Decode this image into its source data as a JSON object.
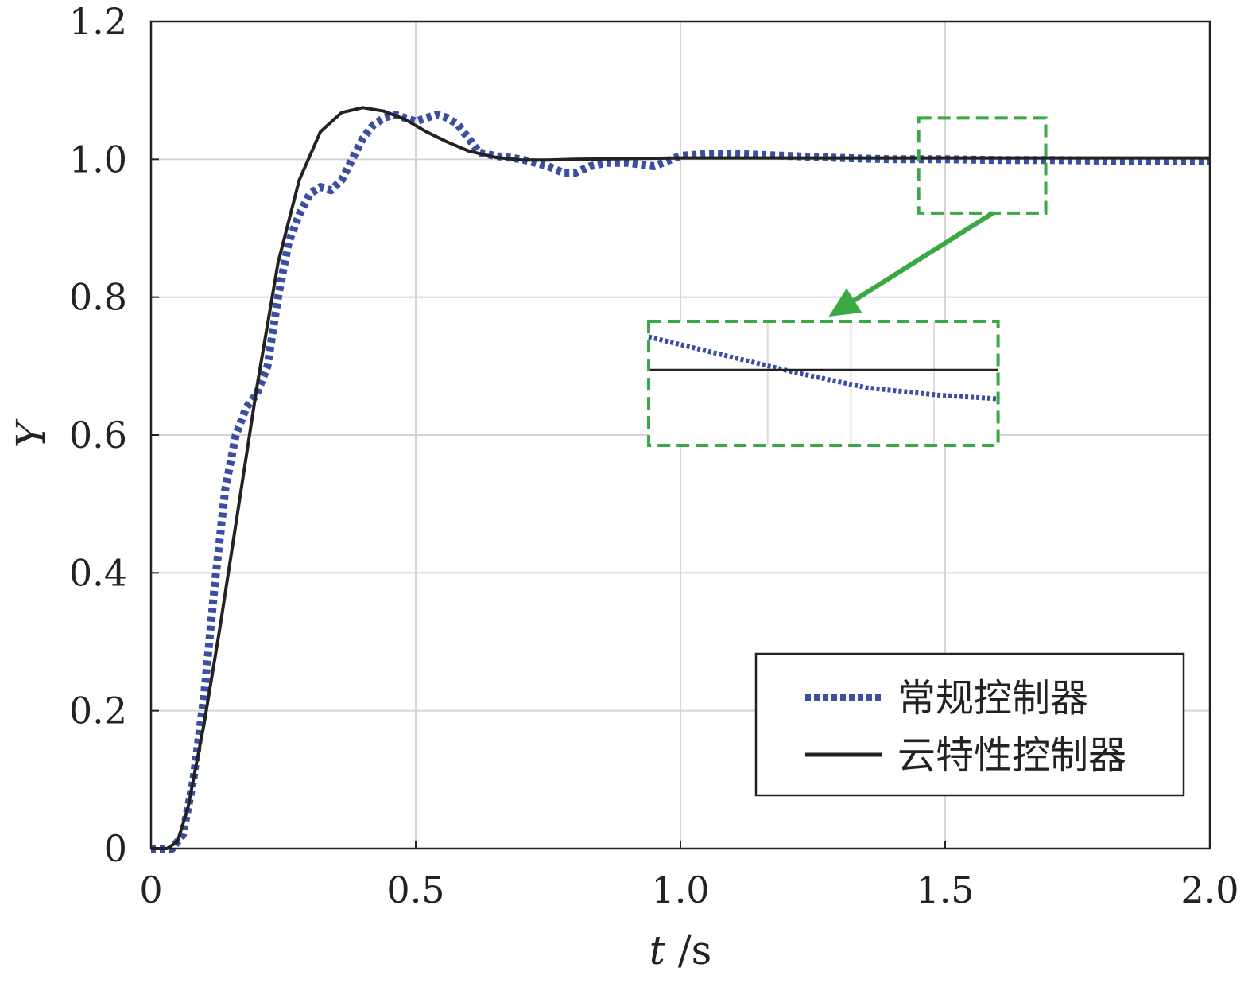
{
  "chart_data": {
    "type": "line",
    "xlabel_var": "t",
    "xlabel_unit": " /s",
    "ylabel": "Y",
    "xlim": [
      0,
      2.0
    ],
    "ylim": [
      0,
      1.2
    ],
    "grid": true,
    "legend_position": "bottom-right",
    "x_ticks": [
      {
        "value": 0,
        "label": "0"
      },
      {
        "value": 0.5,
        "label": "0.5"
      },
      {
        "value": 1.0,
        "label": "1.0"
      },
      {
        "value": 1.5,
        "label": "1.5"
      },
      {
        "value": 2.0,
        "label": "2.0"
      }
    ],
    "y_ticks": [
      {
        "value": 0,
        "label": "0"
      },
      {
        "value": 0.2,
        "label": "0.2"
      },
      {
        "value": 0.4,
        "label": "0.4"
      },
      {
        "value": 0.6,
        "label": "0.6"
      },
      {
        "value": 0.8,
        "label": "0.8"
      },
      {
        "value": 1.0,
        "label": "1.0"
      },
      {
        "value": 1.2,
        "label": "1.2"
      }
    ],
    "series": [
      {
        "name": "常规控制器",
        "color": "#3a4ea3",
        "style": "dotted",
        "x": [
          0,
          0.04,
          0.06,
          0.08,
          0.1,
          0.12,
          0.14,
          0.16,
          0.18,
          0.2,
          0.22,
          0.24,
          0.26,
          0.28,
          0.3,
          0.32,
          0.34,
          0.36,
          0.38,
          0.4,
          0.42,
          0.44,
          0.46,
          0.48,
          0.5,
          0.52,
          0.54,
          0.56,
          0.58,
          0.6,
          0.62,
          0.65,
          0.7,
          0.75,
          0.78,
          0.8,
          0.83,
          0.86,
          0.9,
          0.95,
          1.0,
          1.05,
          1.1,
          1.2,
          1.3,
          1.4,
          1.5,
          1.6,
          1.7,
          1.8,
          1.9,
          2.0
        ],
        "y": [
          0,
          0,
          0.02,
          0.1,
          0.22,
          0.38,
          0.52,
          0.6,
          0.64,
          0.66,
          0.7,
          0.8,
          0.88,
          0.92,
          0.95,
          0.96,
          0.955,
          0.97,
          1.0,
          1.03,
          1.05,
          1.06,
          1.065,
          1.06,
          1.055,
          1.06,
          1.065,
          1.06,
          1.05,
          1.03,
          1.01,
          1.005,
          1.0,
          0.99,
          0.98,
          0.98,
          0.99,
          0.995,
          0.995,
          0.99,
          1.005,
          1.008,
          1.008,
          1.005,
          1.002,
          1.0,
          1.0,
          0.999,
          0.999,
          0.998,
          0.998,
          0.998
        ]
      },
      {
        "name": "云特性控制器",
        "color": "#222222",
        "style": "solid",
        "x": [
          0,
          0.03,
          0.05,
          0.07,
          0.1,
          0.13,
          0.16,
          0.2,
          0.24,
          0.28,
          0.32,
          0.36,
          0.4,
          0.44,
          0.48,
          0.52,
          0.56,
          0.6,
          0.65,
          0.7,
          0.75,
          0.8,
          0.9,
          1.0,
          1.2,
          1.4,
          1.6,
          1.8,
          2.0
        ],
        "y": [
          0,
          0,
          0.01,
          0.06,
          0.18,
          0.32,
          0.47,
          0.67,
          0.85,
          0.97,
          1.04,
          1.068,
          1.075,
          1.07,
          1.058,
          1.04,
          1.025,
          1.012,
          1.003,
          0.999,
          0.999,
          1.0,
          1.001,
          1.002,
          1.002,
          1.002,
          1.002,
          1.002,
          1.002
        ]
      }
    ],
    "annotation": {
      "source_box": {
        "x": [
          1.45,
          1.69
        ],
        "y": [
          0.922,
          1.06
        ]
      },
      "inset_box": {
        "x": [
          0.94,
          1.6
        ],
        "y": [
          0.585,
          0.765
        ]
      },
      "color": "#3aa845"
    }
  }
}
